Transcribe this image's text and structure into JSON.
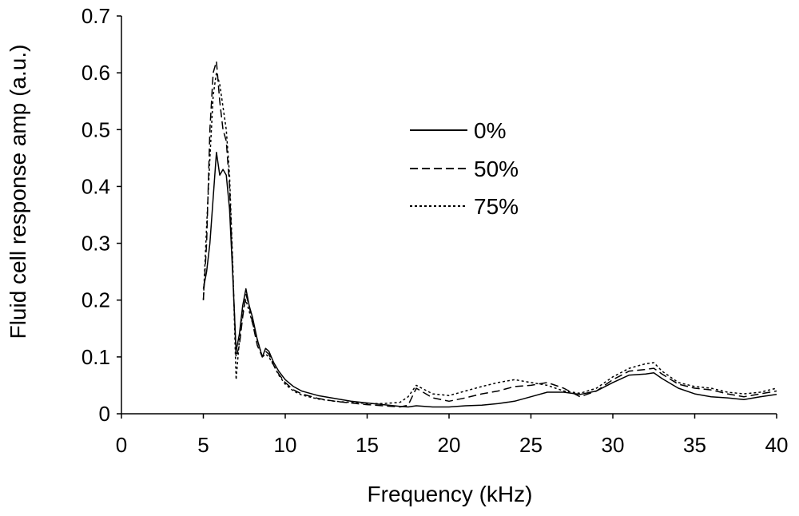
{
  "chart_data": {
    "type": "line",
    "title": "",
    "xlabel": "Frequency (kHz)",
    "ylabel": "Fluid cell response amp (a.u.)",
    "xlim": [
      0,
      40
    ],
    "ylim": [
      0,
      0.7
    ],
    "xticks": [
      "0",
      "5",
      "10",
      "15",
      "20",
      "25",
      "30",
      "35",
      "40"
    ],
    "yticks": [
      "0",
      "0.1",
      "0.2",
      "0.3",
      "0.4",
      "0.5",
      "0.6",
      "0.7"
    ],
    "grid": false,
    "legend_position": "upper-center",
    "series": [
      {
        "name": "0%",
        "style": "solid",
        "x": [
          5.0,
          5.2,
          5.4,
          5.6,
          5.8,
          6.0,
          6.2,
          6.4,
          6.6,
          6.8,
          7.0,
          7.2,
          7.4,
          7.6,
          7.8,
          8.0,
          8.3,
          8.6,
          8.8,
          9.0,
          9.3,
          9.6,
          10.0,
          10.5,
          11,
          12,
          13,
          14,
          15,
          16,
          17,
          17.5,
          18,
          19,
          20,
          21,
          22,
          23,
          24,
          25,
          26,
          27,
          28,
          29,
          30,
          31,
          32,
          32.5,
          33,
          34,
          35,
          36,
          37,
          38,
          39,
          40
        ],
        "y": [
          0.22,
          0.25,
          0.3,
          0.38,
          0.46,
          0.42,
          0.43,
          0.42,
          0.36,
          0.24,
          0.11,
          0.14,
          0.19,
          0.22,
          0.19,
          0.17,
          0.13,
          0.1,
          0.115,
          0.11,
          0.09,
          0.075,
          0.06,
          0.048,
          0.04,
          0.032,
          0.027,
          0.022,
          0.019,
          0.016,
          0.013,
          0.012,
          0.014,
          0.012,
          0.012,
          0.014,
          0.015,
          0.018,
          0.022,
          0.03,
          0.038,
          0.038,
          0.034,
          0.04,
          0.055,
          0.068,
          0.07,
          0.072,
          0.062,
          0.045,
          0.035,
          0.03,
          0.028,
          0.025,
          0.03,
          0.034
        ]
      },
      {
        "name": "50%",
        "style": "dashed",
        "x": [
          5.0,
          5.2,
          5.4,
          5.6,
          5.8,
          6.0,
          6.2,
          6.4,
          6.6,
          6.8,
          7.0,
          7.2,
          7.4,
          7.6,
          7.8,
          8.0,
          8.3,
          8.6,
          8.8,
          9.0,
          9.3,
          9.6,
          10.0,
          10.5,
          11,
          12,
          13,
          14,
          15,
          16,
          17,
          17.5,
          18,
          19,
          20,
          21,
          22,
          23,
          24,
          25,
          26,
          27,
          28,
          29,
          30,
          31,
          32,
          32.5,
          33,
          34,
          35,
          36,
          37,
          38,
          39,
          40
        ],
        "y": [
          0.2,
          0.3,
          0.5,
          0.6,
          0.62,
          0.55,
          0.5,
          0.48,
          0.4,
          0.25,
          0.1,
          0.12,
          0.17,
          0.21,
          0.19,
          0.16,
          0.12,
          0.1,
          0.11,
          0.105,
          0.085,
          0.07,
          0.055,
          0.042,
          0.035,
          0.027,
          0.022,
          0.019,
          0.016,
          0.014,
          0.012,
          0.015,
          0.045,
          0.028,
          0.022,
          0.028,
          0.035,
          0.04,
          0.048,
          0.05,
          0.055,
          0.045,
          0.03,
          0.04,
          0.06,
          0.075,
          0.078,
          0.08,
          0.07,
          0.052,
          0.045,
          0.042,
          0.035,
          0.03,
          0.035,
          0.04
        ]
      },
      {
        "name": "75%",
        "style": "dotted",
        "x": [
          5.0,
          5.2,
          5.4,
          5.6,
          5.8,
          6.0,
          6.2,
          6.4,
          6.6,
          6.8,
          7.0,
          7.2,
          7.4,
          7.6,
          7.8,
          8.0,
          8.3,
          8.6,
          8.8,
          9.0,
          9.3,
          9.6,
          10.0,
          10.5,
          11,
          12,
          13,
          14,
          15,
          16,
          17,
          17.5,
          18,
          19,
          20,
          21,
          22,
          23,
          24,
          25,
          26,
          27,
          28,
          29,
          30,
          31,
          32,
          32.5,
          33,
          34,
          35,
          36,
          37,
          38,
          39,
          40
        ],
        "y": [
          0.2,
          0.33,
          0.45,
          0.56,
          0.6,
          0.58,
          0.54,
          0.5,
          0.42,
          0.26,
          0.06,
          0.13,
          0.18,
          0.2,
          0.18,
          0.16,
          0.13,
          0.1,
          0.105,
          0.1,
          0.085,
          0.068,
          0.052,
          0.04,
          0.033,
          0.026,
          0.022,
          0.02,
          0.018,
          0.018,
          0.02,
          0.03,
          0.05,
          0.035,
          0.032,
          0.04,
          0.048,
          0.055,
          0.06,
          0.055,
          0.05,
          0.04,
          0.036,
          0.045,
          0.065,
          0.08,
          0.088,
          0.09,
          0.075,
          0.055,
          0.048,
          0.045,
          0.038,
          0.035,
          0.038,
          0.045
        ]
      }
    ]
  }
}
